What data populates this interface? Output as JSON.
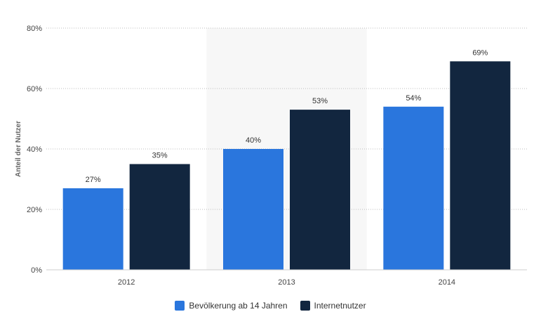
{
  "chart_data": {
    "type": "bar",
    "categories": [
      "2012",
      "2013",
      "2014"
    ],
    "series": [
      {
        "name": "Bevölkerung ab 14 Jahren",
        "values": [
          27,
          40,
          54
        ],
        "labels": [
          "27%",
          "40%",
          "54%"
        ],
        "color": "#2a76dd"
      },
      {
        "name": "Internetnutzer",
        "values": [
          35,
          53,
          69
        ],
        "labels": [
          "35%",
          "53%",
          "69%"
        ],
        "color": "#12263f"
      }
    ],
    "ylabel": "Anteil der Nutzer",
    "xlabel": "",
    "ylim": [
      0,
      80
    ],
    "yticks": [
      0,
      20,
      40,
      60,
      80
    ],
    "ytick_labels": [
      "0%",
      "20%",
      "40%",
      "60%",
      "80%"
    ],
    "grid": true,
    "highlighted_category": "2013",
    "legend_position": "bottom"
  }
}
